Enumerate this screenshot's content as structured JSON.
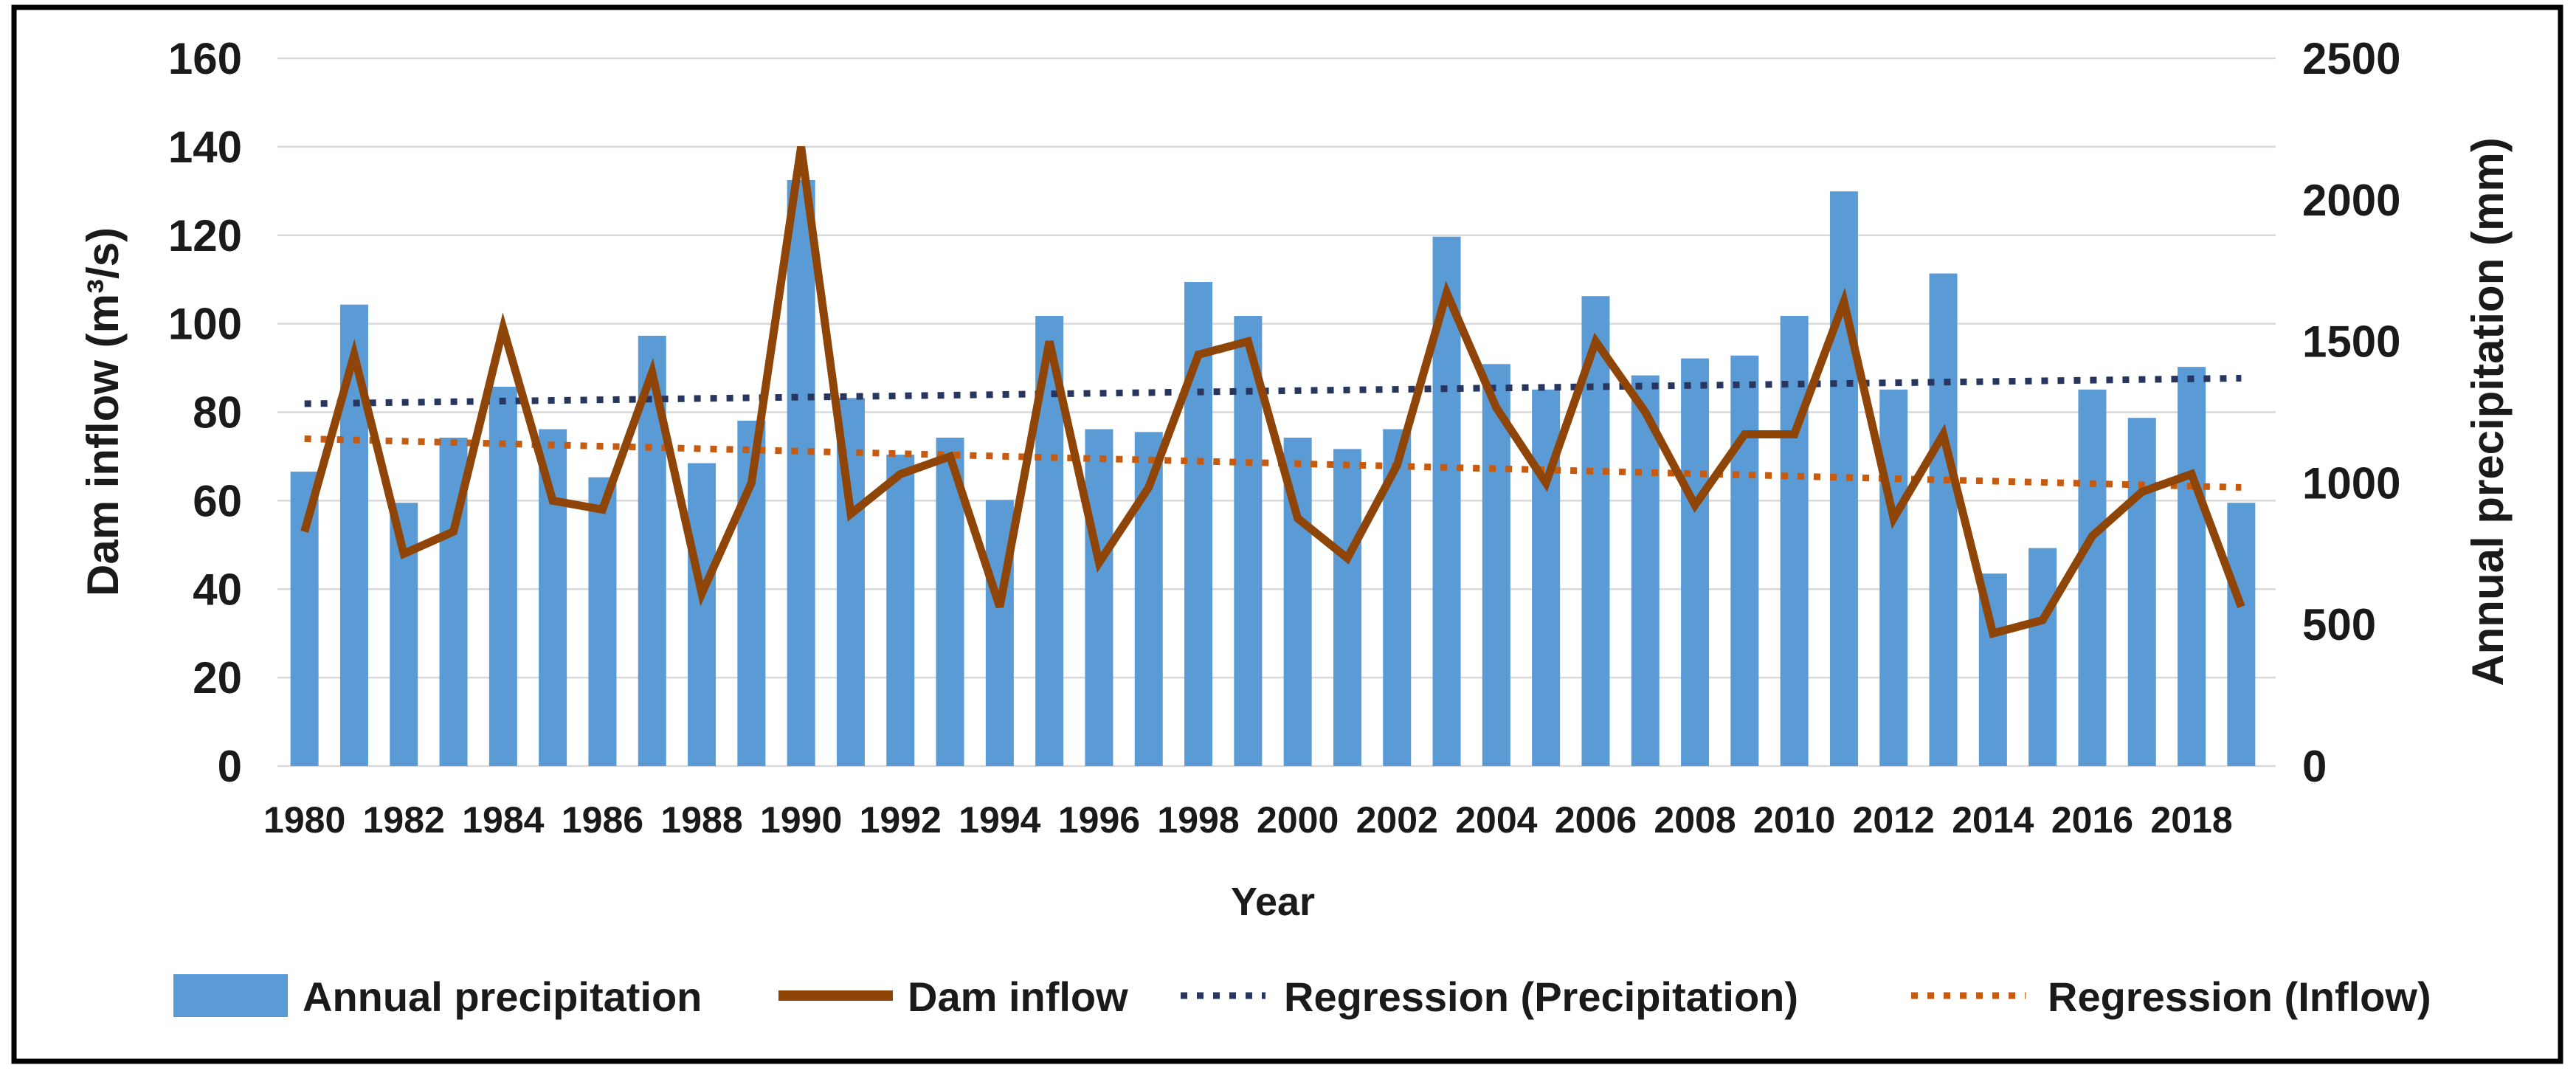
{
  "chart_data": {
    "type": "combo",
    "title": "",
    "xlabel": "Year",
    "ylabel_left": "Dam inflow (m³/s)",
    "ylabel_right": "Annual precipitation (mm)",
    "axis_left": {
      "min": 0,
      "max": 160,
      "step": 20,
      "tick_labels": [
        "0",
        "20",
        "40",
        "60",
        "80",
        "100",
        "120",
        "140",
        "160"
      ]
    },
    "axis_right": {
      "min": 0,
      "max": 2500,
      "step": 500,
      "tick_labels": [
        "0",
        "500",
        "1000",
        "1500",
        "2000",
        "2500"
      ]
    },
    "x_tick_labels": [
      "1980",
      "1982",
      "1984",
      "1986",
      "1988",
      "1990",
      "1992",
      "1994",
      "1996",
      "1998",
      "2000",
      "2002",
      "2004",
      "2006",
      "2008",
      "2010",
      "2012",
      "2014",
      "2016",
      "2018"
    ],
    "years": [
      1980,
      1981,
      1982,
      1983,
      1984,
      1985,
      1986,
      1987,
      1988,
      1989,
      1990,
      1991,
      1992,
      1993,
      1994,
      1995,
      1996,
      1997,
      1998,
      1999,
      2000,
      2001,
      2002,
      2003,
      2004,
      2005,
      2006,
      2007,
      2008,
      2009,
      2010,
      2011,
      2012,
      2013,
      2014,
      2015,
      2016,
      2017,
      2018,
      2019
    ],
    "series": [
      {
        "name": "Annual precipitation",
        "type": "bar",
        "axis": "right",
        "unit": "mm",
        "values": [
          1040,
          1630,
          930,
          1160,
          1340,
          1190,
          1020,
          1520,
          1070,
          1220,
          2070,
          1300,
          1100,
          1160,
          940,
          1590,
          1190,
          1180,
          1710,
          1590,
          1160,
          1120,
          1190,
          1870,
          1420,
          1330,
          1660,
          1380,
          1440,
          1450,
          1590,
          2030,
          1330,
          1740,
          680,
          770,
          1330,
          1230,
          1410,
          930
        ]
      },
      {
        "name": "Dam inflow",
        "type": "line",
        "axis": "left",
        "unit": "m³/s",
        "values": [
          53,
          93,
          48,
          53,
          99,
          60,
          58,
          89,
          39,
          64,
          140,
          57,
          66,
          70,
          36,
          96,
          46,
          63,
          93,
          96,
          56,
          47,
          68,
          107,
          81,
          64,
          96,
          80,
          59,
          75,
          75,
          105,
          56,
          75,
          30,
          33,
          52,
          62,
          66,
          36
        ]
      },
      {
        "name": "Regression (Precipitation)",
        "type": "trendline",
        "axis": "right",
        "unit": "mm",
        "endpoints": [
          1280,
          1370
        ]
      },
      {
        "name": "Regression (Inflow)",
        "type": "trendline",
        "axis": "left",
        "unit": "m³/s",
        "endpoints": [
          74,
          63
        ]
      }
    ],
    "legend": [
      "Annual precipitation",
      "Dam inflow",
      "Regression (Precipitation)",
      "Regression (Inflow)"
    ],
    "legend_position": "bottom",
    "grid": "horizontal",
    "colors": {
      "bar": "#5b9bd5",
      "line": "#8f4408",
      "reg_precip": "#28355e",
      "reg_inflow": "#c55a11",
      "gridline": "#d9d9d9",
      "text": "#1a1a1a",
      "frame": "#000000"
    }
  }
}
